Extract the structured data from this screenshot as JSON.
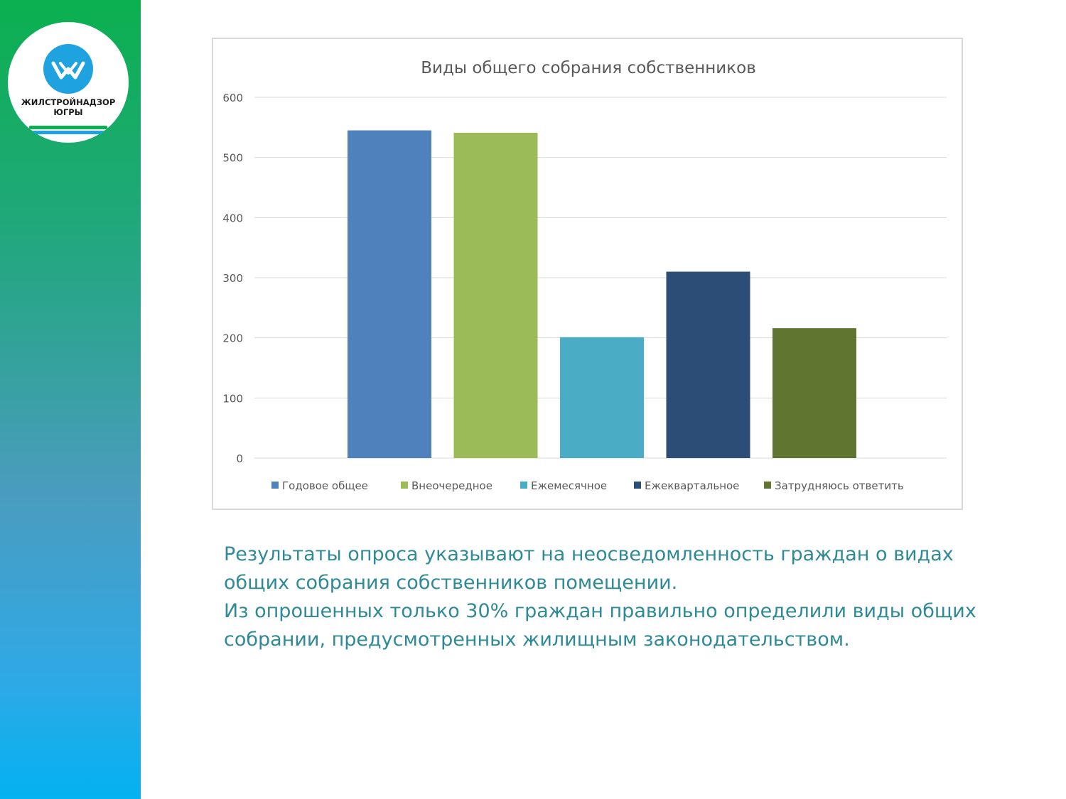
{
  "brand": {
    "logo_line1": "ЖИЛСТРОЙНАДЗОР",
    "logo_line2": "ЮГРЫ",
    "colors": {
      "green": "#0bb04f",
      "blue": "#1ea3e0",
      "text": "#2e8a96"
    }
  },
  "chart_data": {
    "type": "bar",
    "title": "Виды общего собрания собственников",
    "categories": [
      "Годовое общее",
      "Внеочередное",
      "Ежемесячное",
      "Ежеквартальное",
      "Затрудняюсь ответить"
    ],
    "values": [
      545,
      541,
      201,
      310,
      216
    ],
    "colors": [
      "#4f81bd",
      "#9bbb59",
      "#4bacc6",
      "#2c4d75",
      "#5f7530"
    ],
    "yticks": [
      "0",
      "100",
      "200",
      "300",
      "400",
      "500",
      "600"
    ],
    "ylim": [
      0,
      600
    ],
    "grid": true,
    "legend_position": "bottom"
  },
  "text": {
    "paragraph1": "Результаты опроса указывают на неосведомленность граждан о видах общих собрания собственников помещении.",
    "paragraph2": "Из опрошенных только 30% граждан правильно определили виды общих собрании, предусмотренных жилищным законодательством."
  }
}
